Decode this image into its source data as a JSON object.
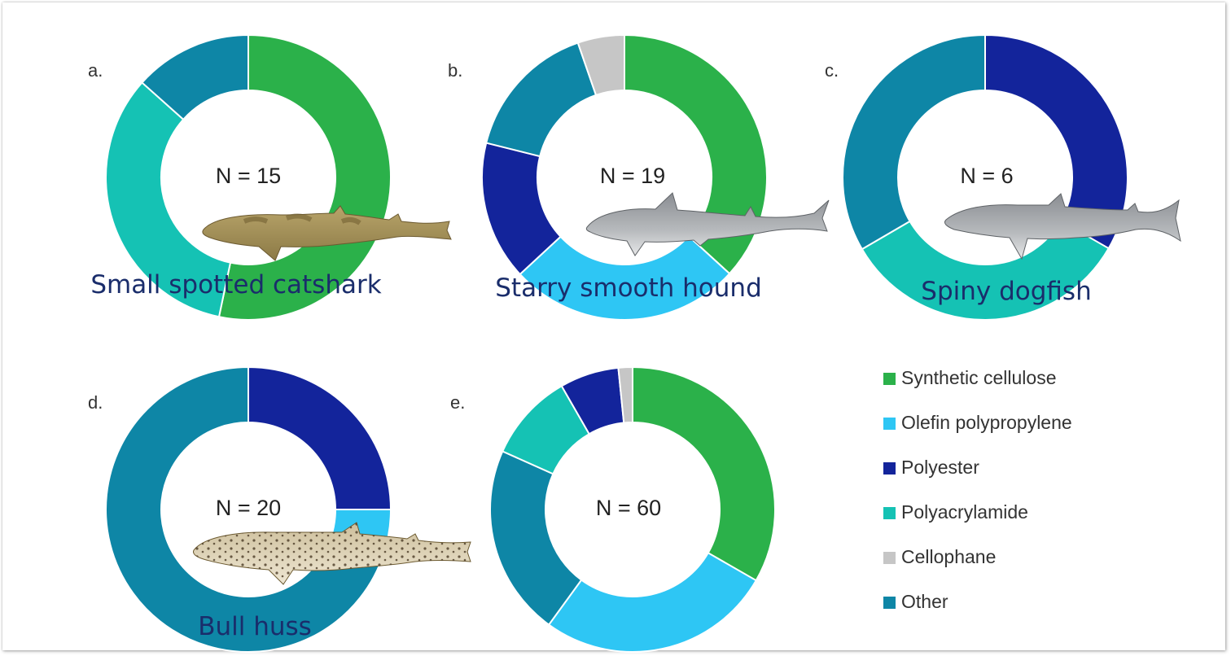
{
  "colors": {
    "Synthetic cellulose": "#2bb14a",
    "Olefin polypropylene": "#2ec6f4",
    "Polyester": "#13249b",
    "Polyacrylamide": "#15c2b4",
    "Cellophane": "#c6c6c6",
    "Other": "#0e86a6"
  },
  "legend": [
    {
      "label": "Synthetic cellulose",
      "color": "#2bb14a"
    },
    {
      "label": "Olefin polypropylene",
      "color": "#2ec6f4"
    },
    {
      "label": "Polyester",
      "color": "#13249b"
    },
    {
      "label": "Polyacrylamide",
      "color": "#15c2b4"
    },
    {
      "label": "Cellophane",
      "color": "#c6c6c6"
    },
    {
      "label": "Other",
      "color": "#0e86a6"
    }
  ],
  "chart_data": [
    {
      "type": "pie",
      "panel": "a.",
      "n_label": "N = 15",
      "species": "Small spotted catshark",
      "slices": [
        {
          "category": "Synthetic cellulose",
          "value": 53.3
        },
        {
          "category": "Polyacrylamide",
          "value": 33.3
        },
        {
          "category": "Other",
          "value": 13.4
        }
      ]
    },
    {
      "type": "pie",
      "panel": "b.",
      "n_label": "N = 19",
      "species": "Starry smooth hound",
      "slices": [
        {
          "category": "Synthetic cellulose",
          "value": 36.8
        },
        {
          "category": "Olefin polypropylene",
          "value": 26.3
        },
        {
          "category": "Polyester",
          "value": 15.8
        },
        {
          "category": "Other",
          "value": 15.8
        },
        {
          "category": "Cellophane",
          "value": 5.3
        }
      ]
    },
    {
      "type": "pie",
      "panel": "c.",
      "n_label": "N = 6",
      "species": "Spiny dogfish",
      "slices": [
        {
          "category": "Polyester",
          "value": 33.3
        },
        {
          "category": "Polyacrylamide",
          "value": 33.3
        },
        {
          "category": "Other",
          "value": 33.4
        }
      ]
    },
    {
      "type": "pie",
      "panel": "d.",
      "n_label": "N = 20",
      "species": "Bull huss",
      "slices": [
        {
          "category": "Polyester",
          "value": 25
        },
        {
          "category": "Olefin polypropylene",
          "value": 5
        },
        {
          "category": "Other",
          "value": 70
        }
      ]
    },
    {
      "type": "pie",
      "panel": "e.",
      "n_label": "N = 60",
      "species": "",
      "slices": [
        {
          "category": "Synthetic cellulose",
          "value": 33.3
        },
        {
          "category": "Olefin polypropylene",
          "value": 26.7
        },
        {
          "category": "Other",
          "value": 21.7
        },
        {
          "category": "Polyacrylamide",
          "value": 10
        },
        {
          "category": "Polyester",
          "value": 6.7
        },
        {
          "category": "Cellophane",
          "value": 1.6
        }
      ]
    }
  ]
}
